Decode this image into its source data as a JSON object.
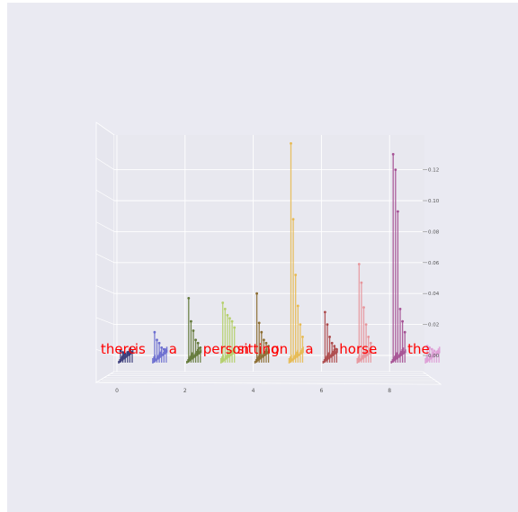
{
  "chart_data": {
    "type": "3d-bar-stems",
    "title": "",
    "xlabel": "",
    "ylabel": "",
    "zlabel": "",
    "x_ticks": [
      "0",
      "2",
      "4",
      "6",
      "8"
    ],
    "z_ticks": [
      "0.00",
      "0.02",
      "0.04",
      "0.06",
      "0.08",
      "0.10",
      "0.12"
    ],
    "xlim": [
      -0.5,
      9.0
    ],
    "zlim": [
      -0.005,
      0.14
    ],
    "tokens": [
      {
        "x": 0,
        "word": "there",
        "color": "#393b79",
        "max": 0.003,
        "values": [
          0.003,
          0.002,
          0.001,
          0.002,
          0.001,
          0.002
        ]
      },
      {
        "x": 1,
        "word": "is",
        "color": "#6b6ecf",
        "max": 0.015,
        "values": [
          0.015,
          0.01,
          0.008,
          0.005,
          0.004,
          0.003
        ]
      },
      {
        "x": 2,
        "word": "a",
        "color": "#637939",
        "max": 0.037,
        "values": [
          0.037,
          0.022,
          0.016,
          0.01,
          0.008,
          0.005
        ]
      },
      {
        "x": 3,
        "word": "person",
        "color": "#b5cf6b",
        "max": 0.034,
        "values": [
          0.034,
          0.03,
          0.026,
          0.024,
          0.022,
          0.018
        ]
      },
      {
        "x": 4,
        "word": "sitting",
        "color": "#8c6d31",
        "max": 0.04,
        "values": [
          0.04,
          0.021,
          0.015,
          0.01,
          0.008,
          0.006
        ]
      },
      {
        "x": 5,
        "word": "on",
        "color": "#e7ba52",
        "max": 0.137,
        "values": [
          0.137,
          0.088,
          0.052,
          0.032,
          0.02,
          0.012
        ]
      },
      {
        "x": 6,
        "word": "a",
        "color": "#ad494a",
        "max": 0.028,
        "values": [
          0.028,
          0.02,
          0.012,
          0.008,
          0.006,
          0.004
        ]
      },
      {
        "x": 7,
        "word": "horse",
        "color": "#e7969c",
        "max": 0.059,
        "values": [
          0.059,
          0.047,
          0.031,
          0.02,
          0.012,
          0.008
        ]
      },
      {
        "x": 8,
        "word": ".",
        "color": "#a55194",
        "max": 0.13,
        "values": [
          0.13,
          0.12,
          0.093,
          0.03,
          0.022,
          0.015
        ]
      },
      {
        "x": 9,
        "word": "the",
        "color": "#de9ed6",
        "max": 0.006,
        "values": [
          0.006,
          0.005,
          0.004,
          0.003,
          0.002,
          0.002
        ]
      }
    ],
    "word_color": "#ff0000"
  }
}
